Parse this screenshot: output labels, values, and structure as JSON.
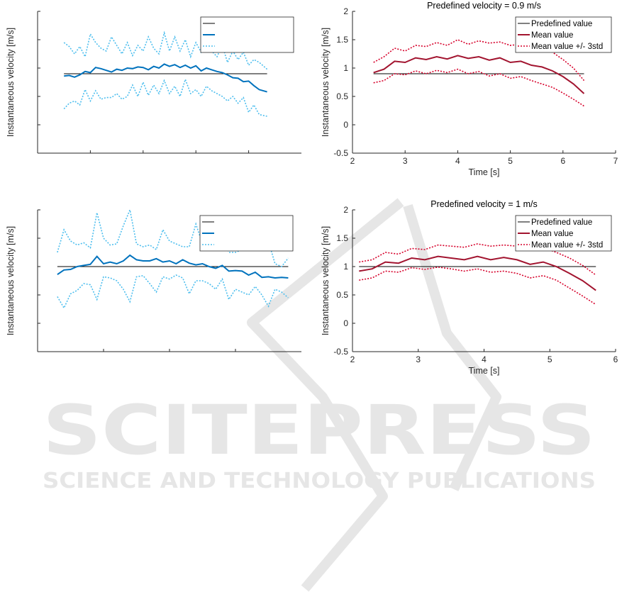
{
  "watermark": {
    "line1": "SCITEPRESS",
    "line2": "SCIENCE AND TECHNOLOGY PUBLICATIONS"
  },
  "colors": {
    "reference": "#000000",
    "blue": "#0072BD",
    "blue_light": "#4DBEEE",
    "red": "#A2142F",
    "red_dotted": "#D6002A",
    "watermark": "#e6e6e6"
  },
  "chart_data": [
    {
      "id": "tl",
      "type": "line",
      "title": "",
      "xlabel": "",
      "ylabel": "Instantaneous velocity [m/s]",
      "xlim": [
        2,
        7
      ],
      "ylim": [
        -0.5,
        2
      ],
      "xticks": [
        3,
        4,
        5,
        6
      ],
      "xtick_labels": [
        "",
        "",
        "",
        ""
      ],
      "yticks": [
        0,
        0.5,
        1,
        1.5,
        2
      ],
      "ytick_labels": [
        "",
        "",
        "",
        "",
        ""
      ],
      "legend": {
        "position": "top-right",
        "entries": [
          "",
          "",
          ""
        ]
      },
      "series": [
        {
          "style": "reference",
          "x": [
            2.5,
            6.35
          ],
          "y": [
            0.9,
            0.9
          ]
        },
        {
          "style": "mean",
          "x": [
            2.5,
            2.6,
            2.7,
            2.8,
            2.9,
            3.0,
            3.1,
            3.2,
            3.3,
            3.4,
            3.5,
            3.6,
            3.7,
            3.8,
            3.9,
            4.0,
            4.1,
            4.2,
            4.3,
            4.4,
            4.5,
            4.6,
            4.7,
            4.8,
            4.9,
            5.0,
            5.1,
            5.2,
            5.3,
            5.4,
            5.5,
            5.6,
            5.7,
            5.8,
            5.9,
            6.0,
            6.1,
            6.2,
            6.35
          ],
          "y": [
            0.86,
            0.87,
            0.84,
            0.88,
            0.94,
            0.92,
            1.01,
            0.99,
            0.96,
            0.93,
            0.98,
            0.96,
            1.0,
            0.99,
            1.02,
            1.01,
            0.97,
            1.03,
            1.0,
            1.07,
            1.03,
            1.06,
            1.01,
            1.05,
            1.0,
            1.04,
            0.95,
            1.0,
            0.97,
            0.94,
            0.92,
            0.88,
            0.83,
            0.82,
            0.76,
            0.77,
            0.69,
            0.62,
            0.58
          ]
        },
        {
          "style": "band",
          "x": [
            2.5,
            2.6,
            2.7,
            2.8,
            2.9,
            3.0,
            3.1,
            3.2,
            3.3,
            3.4,
            3.5,
            3.6,
            3.7,
            3.8,
            3.9,
            4.0,
            4.1,
            4.2,
            4.3,
            4.4,
            4.5,
            4.6,
            4.7,
            4.8,
            4.9,
            5.0,
            5.1,
            5.2,
            5.3,
            5.4,
            5.5,
            5.6,
            5.7,
            5.8,
            5.9,
            6.0,
            6.1,
            6.2,
            6.35
          ],
          "y": [
            1.45,
            1.38,
            1.25,
            1.38,
            1.2,
            1.6,
            1.45,
            1.35,
            1.3,
            1.55,
            1.4,
            1.25,
            1.45,
            1.22,
            1.4,
            1.3,
            1.55,
            1.35,
            1.25,
            1.62,
            1.3,
            1.55,
            1.3,
            1.5,
            1.2,
            1.45,
            1.28,
            1.5,
            1.3,
            1.2,
            1.4,
            1.1,
            1.3,
            1.15,
            1.28,
            1.05,
            1.15,
            1.1,
            0.98
          ]
        },
        {
          "style": "band",
          "x": [
            2.5,
            2.6,
            2.7,
            2.8,
            2.9,
            3.0,
            3.1,
            3.2,
            3.3,
            3.4,
            3.5,
            3.6,
            3.7,
            3.8,
            3.9,
            4.0,
            4.1,
            4.2,
            4.3,
            4.4,
            4.5,
            4.6,
            4.7,
            4.8,
            4.9,
            5.0,
            5.1,
            5.2,
            5.3,
            5.4,
            5.5,
            5.6,
            5.7,
            5.8,
            5.9,
            6.0,
            6.1,
            6.2,
            6.35
          ],
          "y": [
            0.28,
            0.38,
            0.42,
            0.35,
            0.62,
            0.42,
            0.6,
            0.45,
            0.48,
            0.48,
            0.55,
            0.45,
            0.5,
            0.7,
            0.5,
            0.75,
            0.52,
            0.7,
            0.55,
            0.78,
            0.55,
            0.68,
            0.5,
            0.8,
            0.55,
            0.62,
            0.5,
            0.68,
            0.6,
            0.55,
            0.5,
            0.42,
            0.5,
            0.38,
            0.48,
            0.22,
            0.35,
            0.18,
            0.15
          ]
        }
      ]
    },
    {
      "id": "tr",
      "type": "line",
      "title": "Predefined velocity = 0.9 m/s",
      "xlabel": "Time [s]",
      "ylabel": "Instantaneous velocity [m/s]",
      "xlim": [
        2,
        7
      ],
      "ylim": [
        -0.5,
        2
      ],
      "xticks": [
        2,
        3,
        4,
        5,
        6,
        7
      ],
      "xtick_labels": [
        "2",
        "3",
        "4",
        "5",
        "6",
        "7"
      ],
      "yticks": [
        -0.5,
        0,
        0.5,
        1,
        1.5,
        2
      ],
      "ytick_labels": [
        "-0.5",
        "0",
        "0.5",
        "1",
        "1.5",
        "2"
      ],
      "legend": {
        "position": "top-right",
        "entries": [
          "Predefined value",
          "Mean value",
          "Mean value +/- 3std"
        ]
      },
      "series": [
        {
          "style": "reference",
          "x": [
            2.4,
            6.4
          ],
          "y": [
            0.9,
            0.9
          ]
        },
        {
          "style": "mean",
          "x": [
            2.4,
            2.6,
            2.8,
            3.0,
            3.2,
            3.4,
            3.6,
            3.8,
            4.0,
            4.2,
            4.4,
            4.6,
            4.8,
            5.0,
            5.2,
            5.4,
            5.6,
            5.8,
            6.0,
            6.2,
            6.4
          ],
          "y": [
            0.92,
            0.98,
            1.12,
            1.1,
            1.18,
            1.15,
            1.2,
            1.16,
            1.22,
            1.17,
            1.2,
            1.14,
            1.18,
            1.1,
            1.12,
            1.05,
            1.02,
            0.95,
            0.85,
            0.72,
            0.55
          ]
        },
        {
          "style": "band",
          "x": [
            2.4,
            2.6,
            2.8,
            3.0,
            3.2,
            3.4,
            3.6,
            3.8,
            4.0,
            4.2,
            4.4,
            4.6,
            4.8,
            5.0,
            5.2,
            5.4,
            5.6,
            5.8,
            6.0,
            6.2,
            6.4
          ],
          "y": [
            1.1,
            1.2,
            1.35,
            1.3,
            1.4,
            1.38,
            1.45,
            1.4,
            1.5,
            1.42,
            1.48,
            1.44,
            1.46,
            1.4,
            1.42,
            1.38,
            1.35,
            1.28,
            1.15,
            1.0,
            0.78
          ]
        },
        {
          "style": "band",
          "x": [
            2.4,
            2.6,
            2.8,
            3.0,
            3.2,
            3.4,
            3.6,
            3.8,
            4.0,
            4.2,
            4.4,
            4.6,
            4.8,
            5.0,
            5.2,
            5.4,
            5.6,
            5.8,
            6.0,
            6.2,
            6.4
          ],
          "y": [
            0.74,
            0.78,
            0.9,
            0.88,
            0.95,
            0.9,
            0.96,
            0.92,
            0.98,
            0.9,
            0.94,
            0.86,
            0.9,
            0.82,
            0.85,
            0.78,
            0.72,
            0.66,
            0.56,
            0.45,
            0.33
          ]
        }
      ]
    },
    {
      "id": "bl",
      "type": "line",
      "title": "",
      "xlabel": "",
      "ylabel": "Instantaneous velocity [m/s]",
      "xlim": [
        2,
        6
      ],
      "ylim": [
        -0.5,
        2
      ],
      "xticks": [
        3,
        4,
        5
      ],
      "xtick_labels": [
        "",
        "",
        ""
      ],
      "yticks": [
        0,
        0.5,
        1,
        1.5,
        2
      ],
      "ytick_labels": [
        "",
        "",
        "",
        "",
        ""
      ],
      "legend": {
        "position": "top-right",
        "entries": [
          "",
          "",
          ""
        ]
      },
      "series": [
        {
          "style": "reference",
          "x": [
            2.3,
            5.8
          ],
          "y": [
            1.0,
            1.0
          ]
        },
        {
          "style": "mean",
          "x": [
            2.3,
            2.4,
            2.5,
            2.6,
            2.7,
            2.8,
            2.9,
            3.0,
            3.1,
            3.2,
            3.3,
            3.4,
            3.5,
            3.6,
            3.7,
            3.8,
            3.9,
            4.0,
            4.1,
            4.2,
            4.3,
            4.4,
            4.5,
            4.6,
            4.7,
            4.8,
            4.9,
            5.0,
            5.1,
            5.2,
            5.3,
            5.4,
            5.5,
            5.6,
            5.7,
            5.8
          ],
          "y": [
            0.86,
            0.94,
            0.95,
            1.0,
            1.02,
            1.04,
            1.18,
            1.05,
            1.08,
            1.05,
            1.1,
            1.2,
            1.12,
            1.1,
            1.1,
            1.14,
            1.08,
            1.1,
            1.05,
            1.12,
            1.06,
            1.03,
            1.05,
            1.0,
            0.97,
            1.02,
            0.92,
            0.93,
            0.92,
            0.85,
            0.9,
            0.81,
            0.82,
            0.8,
            0.81,
            0.8
          ]
        },
        {
          "style": "band",
          "x": [
            2.3,
            2.4,
            2.5,
            2.6,
            2.7,
            2.8,
            2.9,
            3.0,
            3.1,
            3.2,
            3.3,
            3.4,
            3.5,
            3.6,
            3.7,
            3.8,
            3.9,
            4.0,
            4.1,
            4.2,
            4.3,
            4.4,
            4.5,
            4.6,
            4.7,
            4.8,
            4.9,
            5.0,
            5.1,
            5.2,
            5.3,
            5.4,
            5.5,
            5.6,
            5.7,
            5.8
          ],
          "y": [
            1.25,
            1.65,
            1.45,
            1.38,
            1.42,
            1.33,
            1.95,
            1.5,
            1.38,
            1.4,
            1.72,
            2.0,
            1.4,
            1.35,
            1.38,
            1.3,
            1.65,
            1.45,
            1.4,
            1.35,
            1.35,
            1.75,
            1.4,
            1.6,
            1.32,
            1.55,
            1.25,
            1.25,
            1.3,
            1.45,
            1.32,
            1.48,
            1.45,
            1.05,
            1.0,
            1.15
          ]
        },
        {
          "style": "band",
          "x": [
            2.3,
            2.4,
            2.5,
            2.6,
            2.7,
            2.8,
            2.9,
            3.0,
            3.1,
            3.2,
            3.3,
            3.4,
            3.5,
            3.6,
            3.7,
            3.8,
            3.9,
            4.0,
            4.1,
            4.2,
            4.3,
            4.4,
            4.5,
            4.6,
            4.7,
            4.8,
            4.9,
            5.0,
            5.1,
            5.2,
            5.3,
            5.4,
            5.5,
            5.6,
            5.7,
            5.8
          ],
          "y": [
            0.47,
            0.27,
            0.52,
            0.58,
            0.7,
            0.68,
            0.42,
            0.82,
            0.8,
            0.75,
            0.6,
            0.38,
            0.82,
            0.84,
            0.7,
            0.55,
            0.82,
            0.78,
            0.85,
            0.8,
            0.52,
            0.75,
            0.75,
            0.7,
            0.6,
            0.78,
            0.42,
            0.6,
            0.55,
            0.5,
            0.65,
            0.5,
            0.3,
            0.6,
            0.55,
            0.45
          ]
        }
      ]
    },
    {
      "id": "br",
      "type": "line",
      "title": "Predefined velocity = 1 m/s",
      "xlabel": "Time [s]",
      "ylabel": "Instantaneous velocity [m/s]",
      "xlim": [
        2,
        6
      ],
      "ylim": [
        -0.5,
        2
      ],
      "xticks": [
        2,
        3,
        4,
        5,
        6
      ],
      "xtick_labels": [
        "2",
        "3",
        "4",
        "5",
        "6"
      ],
      "yticks": [
        -0.5,
        0,
        0.5,
        1,
        1.5,
        2
      ],
      "ytick_labels": [
        "-0.5",
        "0",
        "0.5",
        "1",
        "1.5",
        "2"
      ],
      "legend": {
        "position": "top-right",
        "entries": [
          "Predefined value",
          "Mean value",
          "Mean value +/- 3std"
        ]
      },
      "series": [
        {
          "style": "reference",
          "x": [
            2.1,
            5.7
          ],
          "y": [
            1.0,
            1.0
          ]
        },
        {
          "style": "mean",
          "x": [
            2.1,
            2.3,
            2.5,
            2.7,
            2.9,
            3.1,
            3.3,
            3.5,
            3.7,
            3.9,
            4.1,
            4.3,
            4.5,
            4.7,
            4.9,
            5.1,
            5.3,
            5.5,
            5.7
          ],
          "y": [
            0.92,
            0.96,
            1.08,
            1.06,
            1.15,
            1.12,
            1.18,
            1.15,
            1.12,
            1.18,
            1.12,
            1.16,
            1.12,
            1.04,
            1.08,
            1.0,
            0.88,
            0.75,
            0.58
          ]
        },
        {
          "style": "band",
          "x": [
            2.1,
            2.3,
            2.5,
            2.7,
            2.9,
            3.1,
            3.3,
            3.5,
            3.7,
            3.9,
            4.1,
            4.3,
            4.5,
            4.7,
            4.9,
            5.1,
            5.3,
            5.5,
            5.7
          ],
          "y": [
            1.08,
            1.12,
            1.25,
            1.22,
            1.32,
            1.3,
            1.38,
            1.36,
            1.34,
            1.4,
            1.36,
            1.38,
            1.36,
            1.3,
            1.33,
            1.25,
            1.15,
            1.02,
            0.85
          ]
        },
        {
          "style": "band",
          "x": [
            2.1,
            2.3,
            2.5,
            2.7,
            2.9,
            3.1,
            3.3,
            3.5,
            3.7,
            3.9,
            4.1,
            4.3,
            4.5,
            4.7,
            4.9,
            5.1,
            5.3,
            5.5,
            5.7
          ],
          "y": [
            0.76,
            0.8,
            0.92,
            0.9,
            0.98,
            0.95,
            0.99,
            0.96,
            0.92,
            0.96,
            0.9,
            0.92,
            0.88,
            0.8,
            0.84,
            0.76,
            0.62,
            0.48,
            0.33
          ]
        }
      ]
    }
  ]
}
